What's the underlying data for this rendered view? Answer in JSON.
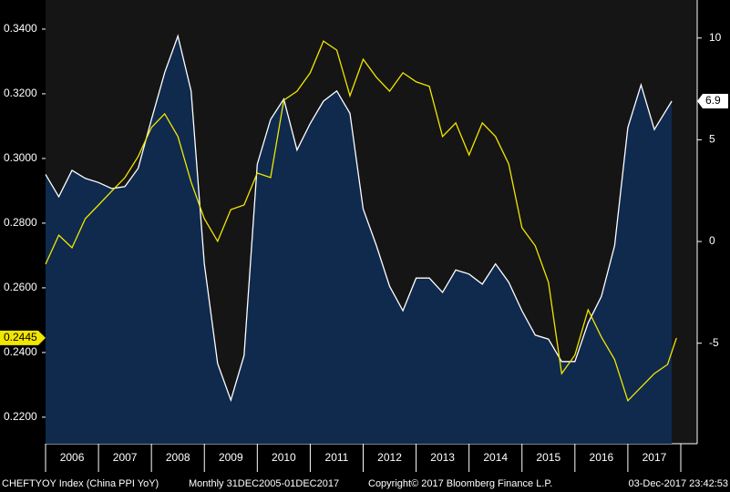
{
  "chart_data": {
    "type": "line",
    "series": [
      {
        "name": "Yellow series",
        "color": "#f2e600",
        "axis": "y",
        "x": [
          2006.0,
          2006.25,
          2006.5,
          2006.75,
          2007.0,
          2007.25,
          2007.5,
          2007.75,
          2008.0,
          2008.25,
          2008.5,
          2008.75,
          2009.0,
          2009.25,
          2009.5,
          2009.75,
          2010.0,
          2010.25,
          2010.5,
          2010.75,
          2011.0,
          2011.25,
          2011.5,
          2011.75,
          2012.0,
          2012.25,
          2012.5,
          2012.75,
          2013.0,
          2013.25,
          2013.5,
          2013.75,
          2014.0,
          2014.25,
          2014.5,
          2014.75,
          2015.0,
          2015.25,
          2015.5,
          2015.75,
          2016.0,
          2016.25,
          2016.5,
          2016.75,
          2017.0,
          2017.25,
          2017.5,
          2017.75,
          2017.92
        ],
        "values": [
          0.2673,
          0.2763,
          0.2724,
          0.2814,
          0.2856,
          0.2899,
          0.2941,
          0.3006,
          0.3096,
          0.3138,
          0.3068,
          0.2927,
          0.2814,
          0.2744,
          0.2842,
          0.2856,
          0.2955,
          0.2941,
          0.318,
          0.3208,
          0.3265,
          0.3363,
          0.3335,
          0.3194,
          0.3307,
          0.3251,
          0.3208,
          0.3265,
          0.3237,
          0.3223,
          0.3068,
          0.311,
          0.3011,
          0.311,
          0.3068,
          0.2983,
          0.2786,
          0.273,
          0.2617,
          0.2335,
          0.2392,
          0.2532,
          0.2448,
          0.2378,
          0.2251,
          0.2293,
          0.2335,
          0.2363,
          0.2445
        ],
        "value_labels": [
          null,
          null,
          null,
          null,
          null,
          null,
          null,
          null,
          null,
          null,
          null,
          null,
          null,
          null,
          null,
          null,
          null,
          null,
          null,
          null,
          null,
          null,
          null,
          null,
          null,
          null,
          null,
          null,
          null,
          null,
          null,
          null,
          null,
          null,
          null,
          null,
          null,
          null,
          null,
          null,
          null,
          null,
          null,
          null,
          null,
          null,
          null,
          null,
          "0.2445"
        ]
      },
      {
        "name": "CHEFTYOY Index (China PPI YoY)",
        "color": "#ffffff",
        "fill": "#0f2a4d",
        "axis": "y2",
        "x": [
          2006.0,
          2006.25,
          2006.5,
          2006.75,
          2007.0,
          2007.25,
          2007.5,
          2007.75,
          2008.0,
          2008.25,
          2008.5,
          2008.75,
          2009.0,
          2009.25,
          2009.5,
          2009.75,
          2010.0,
          2010.25,
          2010.5,
          2010.75,
          2011.0,
          2011.25,
          2011.5,
          2011.75,
          2012.0,
          2012.25,
          2012.5,
          2012.75,
          2013.0,
          2013.25,
          2013.5,
          2013.75,
          2014.0,
          2014.25,
          2014.5,
          2014.75,
          2015.0,
          2015.25,
          2015.5,
          2015.75,
          2016.0,
          2016.25,
          2016.5,
          2016.75,
          2017.0,
          2017.25,
          2017.5,
          2017.83
        ],
        "values": [
          3.3,
          2.2,
          3.5,
          3.1,
          2.9,
          2.6,
          2.7,
          3.6,
          6.0,
          8.3,
          10.1,
          7.4,
          -1.1,
          -6.0,
          -7.8,
          -5.6,
          3.8,
          6.0,
          7.0,
          4.5,
          5.8,
          6.9,
          7.4,
          6.3,
          1.6,
          -0.2,
          -2.2,
          -3.4,
          -1.8,
          -1.8,
          -2.5,
          -1.4,
          -1.6,
          -2.1,
          -1.1,
          -2.0,
          -3.4,
          -4.6,
          -4.8,
          -5.9,
          -5.9,
          -4.0,
          -2.7,
          -0.2,
          5.6,
          7.7,
          5.5,
          6.9
        ]
      }
    ],
    "xlim": [
      2006.0,
      2018.31
    ],
    "xticks": [
      {
        "value": 2006.5,
        "label": "2006"
      },
      {
        "value": 2007.5,
        "label": "2007"
      },
      {
        "value": 2008.5,
        "label": "2008"
      },
      {
        "value": 2009.5,
        "label": "2009"
      },
      {
        "value": 2010.5,
        "label": "2010"
      },
      {
        "value": 2011.5,
        "label": "2011"
      },
      {
        "value": 2012.5,
        "label": "2012"
      },
      {
        "value": 2013.5,
        "label": "2013"
      },
      {
        "value": 2014.5,
        "label": "2014"
      },
      {
        "value": 2015.5,
        "label": "2015"
      },
      {
        "value": 2016.5,
        "label": "2016"
      },
      {
        "value": 2017.5,
        "label": "2017"
      }
    ],
    "ylim": [
      0.2118,
      0.349
    ],
    "yticks": [
      {
        "value": 0.22,
        "label": "0.2200"
      },
      {
        "value": 0.24,
        "label": "0.2400"
      },
      {
        "value": 0.26,
        "label": "0.2600"
      },
      {
        "value": 0.28,
        "label": "0.2800"
      },
      {
        "value": 0.3,
        "label": "0.3000"
      },
      {
        "value": 0.32,
        "label": "0.3200"
      },
      {
        "value": 0.34,
        "label": "0.3400"
      }
    ],
    "y2lim": [
      -9.94,
      11.87
    ],
    "y2ticks": [
      -5,
      0,
      5,
      10
    ],
    "footer": {
      "index": "CHEFTYOY Index (China PPI YoY)",
      "range": "Monthly 31DEC2005-01DEC2017",
      "copyright": "Copyright© 2017 Bloomberg Finance L.P.",
      "timestamp": "03-Dec-2017 23:42:53"
    }
  }
}
